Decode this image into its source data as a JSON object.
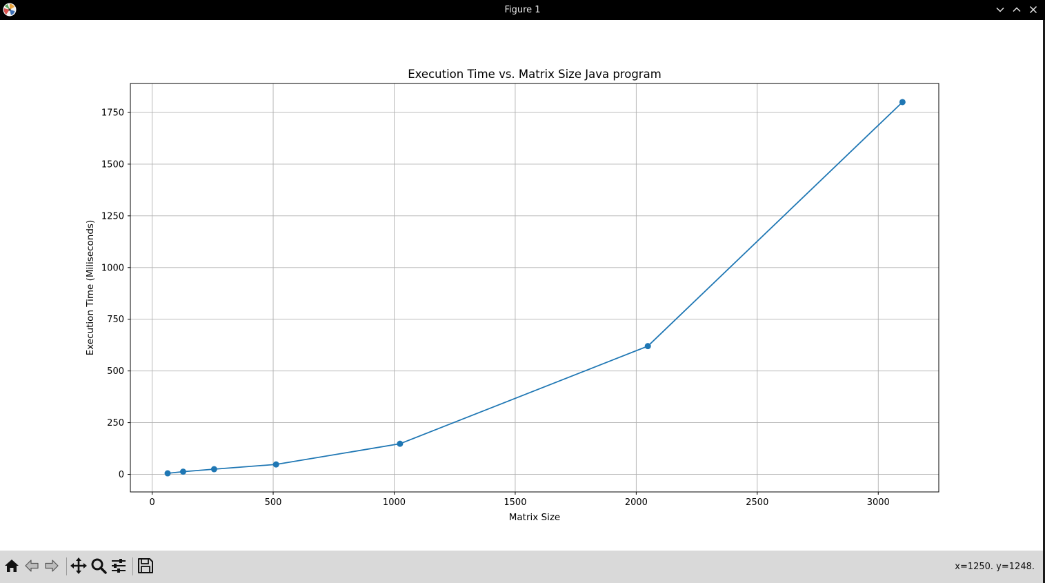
{
  "window": {
    "title": "Figure 1",
    "app_icon": "matplotlib-icon",
    "controls": [
      "chevron-down-icon",
      "chevron-up-icon",
      "close-icon"
    ]
  },
  "toolbar": {
    "buttons": [
      "home-icon",
      "back-arrow-icon",
      "forward-arrow-icon",
      "pan-move-icon",
      "zoom-magnifier-icon",
      "configure-subplots-icon",
      "save-floppy-icon"
    ],
    "coordinates": "x=1250. y=1248."
  },
  "chart_data": {
    "type": "line",
    "title": "Execution Time vs. Matrix Size Java program",
    "xlabel": "Matrix Size",
    "ylabel": "Execution Time (Miliseconds)",
    "xlim": [
      -90,
      3250
    ],
    "ylim": [
      -85,
      1890
    ],
    "xticks": [
      0,
      500,
      1000,
      1500,
      2000,
      2500,
      3000
    ],
    "yticks": [
      0,
      250,
      500,
      750,
      1000,
      1250,
      1500,
      1750
    ],
    "grid": true,
    "marker": "circle",
    "color": "#1f77b4",
    "series": [
      {
        "x": [
          64,
          128,
          256,
          512,
          1024,
          2048,
          3100
        ],
        "y": [
          5,
          13,
          25,
          48,
          148,
          620,
          1800
        ]
      }
    ]
  }
}
